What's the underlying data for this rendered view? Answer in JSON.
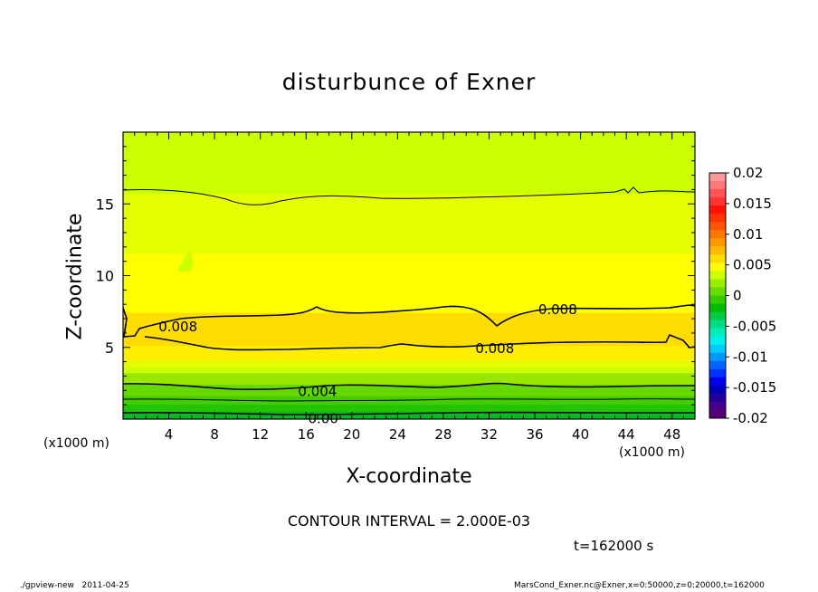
{
  "chart_data": {
    "type": "heatmap",
    "subtype": "filled-contour",
    "title": "disturbunce of Exner",
    "xlabel": "X-coordinate",
    "ylabel": "Z-coordinate",
    "x_unit_label": "(x1000 m)",
    "y_unit_label": "(x1000 m)",
    "xlim": [
      0,
      50
    ],
    "ylim": [
      0,
      20
    ],
    "x_ticks": [
      4,
      8,
      12,
      16,
      20,
      24,
      28,
      32,
      36,
      40,
      44,
      48
    ],
    "y_ticks": [
      5,
      10,
      15
    ],
    "contour_interval_text": "CONTOUR INTERVAL = 2.000E-03",
    "time_text": "t=162000 s",
    "colorbar": {
      "ticks": [
        "0.02",
        "0.015",
        "0.01",
        "0.005",
        "0",
        "-0.005",
        "-0.01",
        "-0.015",
        "-0.02"
      ],
      "min": -0.02,
      "max": 0.02
    },
    "bands": [
      {
        "value": -0.001,
        "color": "#00bb22"
      },
      {
        "value": 0.0,
        "color": "#22cc00"
      },
      {
        "value": 0.001,
        "color": "#33cc00"
      },
      {
        "value": 0.002,
        "color": "#55d400"
      },
      {
        "value": 0.003,
        "color": "#77dd00"
      },
      {
        "value": 0.004,
        "color": "#99e600"
      },
      {
        "value": 0.005,
        "color": "#ccff00"
      },
      {
        "value": 0.006,
        "color": "#e6ff00"
      },
      {
        "value": 0.007,
        "color": "#ffff00"
      },
      {
        "value": 0.008,
        "color": "#ffdd00"
      },
      {
        "value": 0.009,
        "color": "#ffcc22"
      }
    ],
    "contour_labels": [
      {
        "text": "0.008",
        "x": 4.8,
        "z": 6.5
      },
      {
        "text": "0.008",
        "x": 38.0,
        "z": 7.7
      },
      {
        "text": "0.008",
        "x": 32.5,
        "z": 5.0
      },
      {
        "text": "0.004",
        "x": 17.0,
        "z": 2.0
      },
      {
        "text": "0.00",
        "x": 17.5,
        "z": 0.1
      }
    ]
  },
  "footer": {
    "left": "./gpview-new   2011-04-25",
    "right": "MarsCond_Exner.nc@Exner,x=0:50000,z=0:20000,t=162000"
  }
}
